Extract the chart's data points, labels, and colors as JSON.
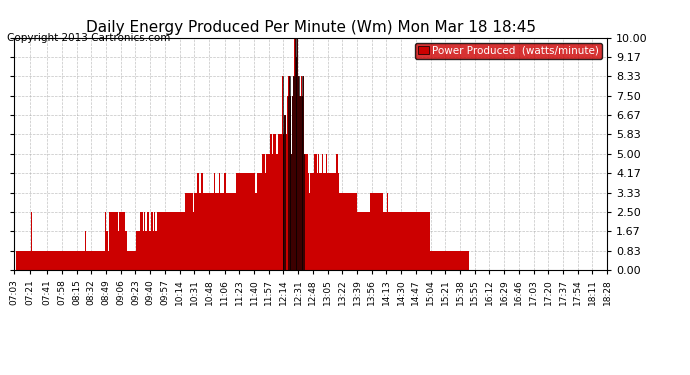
{
  "title": "Daily Energy Produced Per Minute (Wm) Mon Mar 18 18:45",
  "copyright": "Copyright 2013 Cartronics.com",
  "legend_label": "Power Produced  (watts/minute)",
  "legend_bg": "#cc0000",
  "legend_fg": "#ffffff",
  "bar_color": "#cc0000",
  "line_color": "#000000",
  "background_color": "#ffffff",
  "grid_color": "#aaaaaa",
  "ylim": [
    0.0,
    10.0
  ],
  "yticks": [
    0.0,
    0.83,
    1.67,
    2.5,
    3.33,
    4.17,
    5.0,
    5.83,
    6.67,
    7.5,
    8.33,
    9.17,
    10.0
  ],
  "ytick_labels": [
    "0.00",
    "0.83",
    "1.67",
    "2.50",
    "3.33",
    "4.17",
    "5.00",
    "5.83",
    "6.67",
    "7.50",
    "8.33",
    "9.17",
    "10.00"
  ],
  "x_tick_labels": [
    "07:03",
    "07:21",
    "07:41",
    "07:58",
    "08:15",
    "08:32",
    "08:49",
    "09:06",
    "09:23",
    "09:40",
    "09:57",
    "10:14",
    "10:31",
    "10:48",
    "11:06",
    "11:23",
    "11:40",
    "11:57",
    "12:14",
    "12:31",
    "12:48",
    "13:05",
    "13:22",
    "13:39",
    "13:56",
    "14:13",
    "14:30",
    "14:47",
    "15:04",
    "15:21",
    "15:38",
    "15:55",
    "16:12",
    "16:29",
    "16:46",
    "17:03",
    "17:20",
    "17:37",
    "17:54",
    "18:11",
    "18:28"
  ],
  "x_tick_positions": [
    0,
    18,
    38,
    55,
    72,
    89,
    106,
    123,
    140,
    157,
    174,
    191,
    208,
    225,
    243,
    260,
    277,
    294,
    311,
    328,
    345,
    362,
    379,
    396,
    413,
    430,
    447,
    464,
    481,
    498,
    515,
    532,
    549,
    566,
    583,
    600,
    617,
    634,
    651,
    668,
    685
  ],
  "data": [
    0.0,
    0.0,
    0.0,
    0.83,
    0.83,
    0.83,
    0.83,
    0.83,
    0.83,
    0.83,
    0.83,
    0.83,
    0.83,
    0.83,
    0.83,
    0.83,
    0.83,
    0.83,
    0.83,
    0.83,
    2.5,
    0.83,
    0.83,
    0.83,
    0.83,
    0.83,
    0.83,
    0.83,
    0.83,
    0.83,
    0.83,
    0.83,
    0.83,
    0.83,
    0.83,
    0.83,
    0.83,
    0.83,
    0.83,
    0.83,
    0.83,
    0.83,
    0.83,
    0.83,
    0.83,
    0.83,
    0.83,
    0.83,
    0.83,
    0.83,
    0.83,
    0.83,
    0.83,
    0.83,
    0.83,
    0.83,
    0.83,
    0.83,
    0.83,
    0.83,
    0.83,
    0.83,
    0.83,
    0.83,
    0.83,
    0.83,
    0.83,
    0.83,
    0.83,
    0.83,
    0.83,
    0.83,
    0.83,
    0.83,
    0.83,
    0.83,
    0.83,
    0.83,
    0.83,
    0.83,
    0.83,
    0.83,
    1.67,
    0.83,
    0.83,
    0.83,
    0.83,
    0.83,
    0.83,
    0.83,
    0.83,
    0.83,
    0.83,
    0.83,
    0.83,
    0.83,
    0.83,
    0.83,
    0.83,
    0.83,
    0.83,
    0.83,
    0.83,
    0.83,
    0.83,
    2.5,
    2.5,
    1.67,
    1.67,
    0.83,
    2.5,
    2.5,
    2.5,
    2.5,
    2.5,
    2.5,
    2.5,
    2.5,
    2.5,
    2.5,
    1.67,
    2.5,
    2.5,
    2.5,
    2.5,
    2.5,
    2.5,
    2.5,
    2.5,
    1.67,
    1.67,
    0.83,
    0.83,
    0.83,
    0.83,
    0.83,
    0.83,
    0.83,
    0.83,
    0.83,
    0.83,
    1.67,
    1.67,
    1.67,
    1.67,
    1.67,
    2.5,
    2.5,
    2.5,
    1.67,
    2.5,
    2.5,
    1.67,
    1.67,
    2.5,
    2.5,
    1.67,
    1.67,
    2.5,
    2.5,
    2.5,
    1.67,
    2.5,
    1.67,
    1.67,
    2.5,
    2.5,
    2.5,
    2.5,
    2.5,
    2.5,
    2.5,
    2.5,
    2.5,
    2.5,
    2.5,
    2.5,
    2.5,
    2.5,
    2.5,
    3.33,
    2.5,
    2.5,
    2.5,
    2.5,
    2.5,
    2.5,
    2.5,
    2.5,
    2.5,
    2.5,
    2.5,
    2.5,
    2.5,
    2.5,
    2.5,
    2.5,
    2.5,
    3.33,
    3.33,
    3.33,
    3.33,
    3.33,
    3.33,
    3.33,
    3.33,
    3.33,
    2.5,
    3.33,
    3.33,
    3.33,
    3.33,
    4.17,
    4.17,
    3.33,
    3.33,
    4.17,
    4.17,
    3.33,
    3.33,
    3.33,
    3.33,
    3.33,
    3.33,
    3.33,
    3.33,
    3.33,
    3.33,
    3.33,
    3.33,
    3.33,
    4.17,
    3.33,
    3.33,
    3.33,
    3.33,
    3.33,
    4.17,
    3.33,
    3.33,
    3.33,
    3.33,
    3.33,
    4.17,
    4.17,
    3.33,
    3.33,
    3.33,
    3.33,
    3.33,
    3.33,
    3.33,
    3.33,
    3.33,
    3.33,
    3.33,
    3.33,
    4.17,
    4.17,
    4.17,
    4.17,
    4.17,
    4.17,
    4.17,
    4.17,
    4.17,
    4.17,
    4.17,
    4.17,
    4.17,
    4.17,
    4.17,
    4.17,
    4.17,
    4.17,
    4.17,
    4.17,
    4.17,
    4.17,
    3.33,
    3.33,
    4.17,
    4.17,
    4.17,
    4.17,
    3.33,
    4.17,
    5.0,
    5.0,
    5.0,
    4.17,
    5.0,
    5.0,
    5.0,
    5.0,
    5.0,
    5.83,
    5.83,
    5.0,
    5.83,
    5.83,
    5.83,
    5.83,
    5.0,
    5.0,
    5.83,
    5.83,
    5.83,
    5.83,
    5.83,
    8.33,
    5.83,
    6.67,
    6.67,
    5.83,
    5.83,
    7.5,
    8.33,
    8.33,
    7.5,
    5.0,
    7.5,
    8.33,
    8.33,
    10.0,
    10.0,
    9.17,
    10.0,
    8.33,
    8.33,
    7.5,
    7.5,
    8.33,
    7.5,
    8.33,
    5.0,
    5.0,
    5.0,
    5.0,
    5.0,
    4.17,
    3.33,
    4.17,
    4.17,
    3.33,
    4.17,
    4.17,
    5.0,
    5.0,
    5.0,
    4.17,
    5.0,
    4.17,
    4.17,
    4.17,
    4.17,
    5.0,
    4.17,
    4.17,
    4.17,
    4.17,
    5.0,
    4.17,
    4.17,
    4.17,
    4.17,
    4.17,
    4.17,
    4.17,
    4.17,
    4.17,
    4.17,
    5.0,
    5.0,
    4.17,
    4.17,
    3.33,
    3.33,
    3.33,
    3.33,
    3.33,
    2.5,
    3.33,
    3.33,
    3.33,
    3.33,
    3.33,
    3.33,
    3.33,
    3.33,
    3.33,
    3.33,
    3.33,
    3.33,
    3.33,
    3.33,
    3.33,
    2.5,
    2.5,
    2.5,
    2.5,
    2.5,
    2.5,
    2.5,
    2.5,
    2.5,
    2.5,
    2.5,
    2.5,
    2.5,
    2.5,
    3.33,
    3.33,
    3.33,
    3.33,
    3.33,
    3.33,
    3.33,
    3.33,
    3.33,
    3.33,
    3.33,
    3.33,
    3.33,
    3.33,
    3.33,
    3.33,
    2.5,
    2.5,
    2.5,
    2.5,
    3.33,
    2.5,
    2.5,
    2.5,
    2.5,
    2.5,
    2.5,
    2.5,
    2.5,
    2.5,
    2.5,
    2.5,
    2.5,
    2.5,
    2.5,
    2.5,
    2.5,
    2.5,
    2.5,
    2.5,
    2.5,
    2.5,
    2.5,
    2.5,
    2.5,
    2.5,
    2.5,
    2.5,
    2.5,
    2.5,
    2.5,
    2.5,
    2.5,
    2.5,
    2.5,
    2.5,
    2.5,
    2.5,
    2.5,
    2.5,
    2.5,
    2.5,
    2.5,
    2.5,
    2.5,
    2.5,
    2.5,
    2.5,
    2.5,
    2.5,
    0.83,
    0.83,
    0.83,
    0.83,
    0.83,
    0.83,
    0.83,
    0.83,
    0.83,
    0.83,
    0.83,
    0.83,
    0.83,
    0.83,
    0.83,
    0.83,
    0.83,
    0.83,
    0.83,
    0.83,
    0.83,
    0.83,
    0.83,
    0.83,
    0.83,
    0.83,
    0.83,
    0.83,
    0.83,
    0.83,
    0.83,
    0.83,
    0.83,
    0.83,
    0.83,
    0.83,
    0.83,
    0.83,
    0.83,
    0.83,
    0.83,
    0.83,
    0.83,
    0.83,
    0.83,
    0.0,
    0.0,
    0.0,
    0.0,
    0.0,
    0.0,
    0.0,
    0.0,
    0.0,
    0.0,
    0.0,
    0.0,
    0.0,
    0.0,
    0.0
  ]
}
